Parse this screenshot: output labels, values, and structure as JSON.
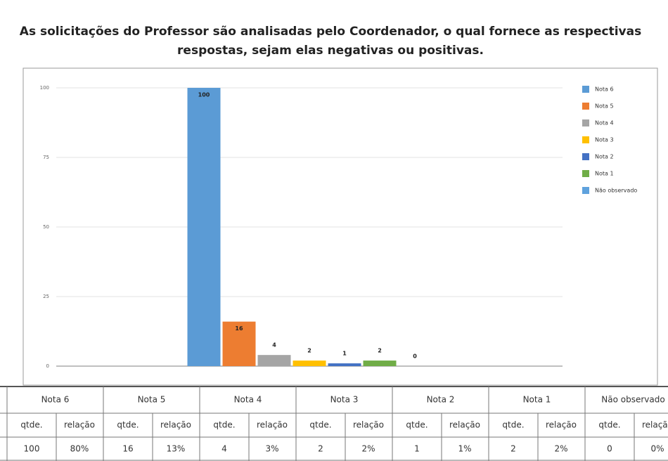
{
  "chart_data": {
    "type": "bar",
    "title": "As solicitações do Professor são analisadas pelo Coordenador, o qual fornece as respectivas",
    "subtitle": "respostas, sejam elas negativas ou positivas.",
    "categories": [
      null
    ],
    "series": [
      {
        "name": "Nota 6",
        "color": "#5b9bd5",
        "values": [
          100
        ]
      },
      {
        "name": "Nota 5",
        "color": "#ed7d31",
        "values": [
          16
        ]
      },
      {
        "name": "Nota 4",
        "color": "#a5a5a5",
        "values": [
          4
        ]
      },
      {
        "name": "Nota 3",
        "color": "#ffc000",
        "values": [
          2
        ]
      },
      {
        "name": "Nota 2",
        "color": "#4472c4",
        "values": [
          1
        ]
      },
      {
        "name": "Nota 1",
        "color": "#70ad47",
        "values": [
          2
        ]
      },
      {
        "name": "Não observado",
        "color": "#5fa2dd",
        "values": [
          0
        ]
      }
    ],
    "ylim": [
      0,
      100
    ],
    "yticks": [
      0,
      25,
      50,
      75,
      100
    ],
    "grid": true,
    "legend": "right"
  },
  "table": {
    "subheaders": [
      "qtde.",
      "relação"
    ],
    "relacao": [
      "80%",
      "13%",
      "3%",
      "2%",
      "1%",
      "2%",
      "0%"
    ]
  }
}
